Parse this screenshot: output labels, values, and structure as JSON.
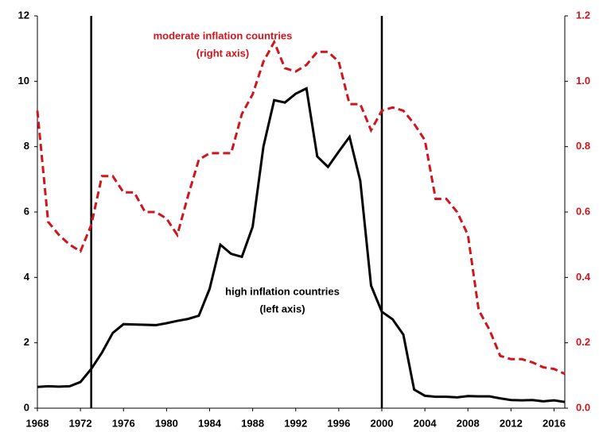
{
  "chart_data": {
    "type": "line",
    "x": [
      1968,
      1969,
      1970,
      1971,
      1972,
      1973,
      1974,
      1975,
      1976,
      1977,
      1978,
      1979,
      1980,
      1981,
      1982,
      1983,
      1984,
      1985,
      1986,
      1987,
      1988,
      1989,
      1990,
      1991,
      1992,
      1993,
      1994,
      1995,
      1996,
      1997,
      1998,
      1999,
      2000,
      2001,
      2002,
      2003,
      2004,
      2005,
      2006,
      2007,
      2008,
      2009,
      2010,
      2011,
      2012,
      2013,
      2014,
      2015,
      2016,
      2017
    ],
    "series": [
      {
        "color": "#000000",
        "axis": "y",
        "dash": false,
        "values": [
          0.65,
          0.67,
          0.66,
          0.67,
          0.8,
          1.2,
          1.7,
          2.3,
          2.57,
          2.56,
          2.55,
          2.54,
          2.6,
          2.67,
          2.73,
          2.83,
          3.65,
          5.0,
          4.72,
          4.63,
          5.55,
          8.0,
          9.42,
          9.35,
          9.62,
          9.78,
          7.7,
          7.38,
          7.85,
          8.3,
          6.95,
          3.75,
          2.95,
          2.72,
          2.25,
          0.57,
          0.38,
          0.35,
          0.35,
          0.33,
          0.37,
          0.36,
          0.36,
          0.3,
          0.25,
          0.24,
          0.25,
          0.21,
          0.24,
          0.19
        ]
      },
      {
        "color": "#d0161c",
        "axis": "y2",
        "dash": true,
        "values": [
          0.91,
          0.57,
          0.53,
          0.5,
          0.48,
          0.56,
          0.71,
          0.71,
          0.66,
          0.66,
          0.6,
          0.6,
          0.58,
          0.53,
          0.65,
          0.76,
          0.78,
          0.78,
          0.78,
          0.9,
          0.96,
          1.06,
          1.12,
          1.04,
          1.03,
          1.05,
          1.09,
          1.09,
          1.06,
          0.93,
          0.93,
          0.85,
          0.91,
          0.92,
          0.91,
          0.87,
          0.82,
          0.64,
          0.64,
          0.6,
          0.53,
          0.3,
          0.24,
          0.16,
          0.15,
          0.15,
          0.14,
          0.125,
          0.12,
          0.105
        ]
      }
    ],
    "annotations": [
      {
        "lines": [
          "moderate inflation countries",
          "(right axis)"
        ],
        "color": "#d0161c"
      },
      {
        "lines": [
          "high inflation countries",
          "(left axis)"
        ],
        "color": "#000000"
      }
    ],
    "vlines": [
      1973,
      2000
    ],
    "xlim": [
      1968,
      2017
    ],
    "xticks": [
      1968,
      1972,
      1976,
      1980,
      1984,
      1988,
      1992,
      1996,
      2000,
      2004,
      2008,
      2012,
      2016
    ],
    "ylim": [
      0,
      12
    ],
    "yticks": [
      0,
      2,
      4,
      6,
      8,
      10,
      12
    ],
    "y2lim": [
      0,
      1.2
    ],
    "y2ticks": [
      {
        "value": 0,
        "label": "0.0"
      },
      0.2,
      0.4,
      0.6,
      0.8,
      {
        "value": 1,
        "label": "1.0"
      },
      1.2
    ]
  }
}
